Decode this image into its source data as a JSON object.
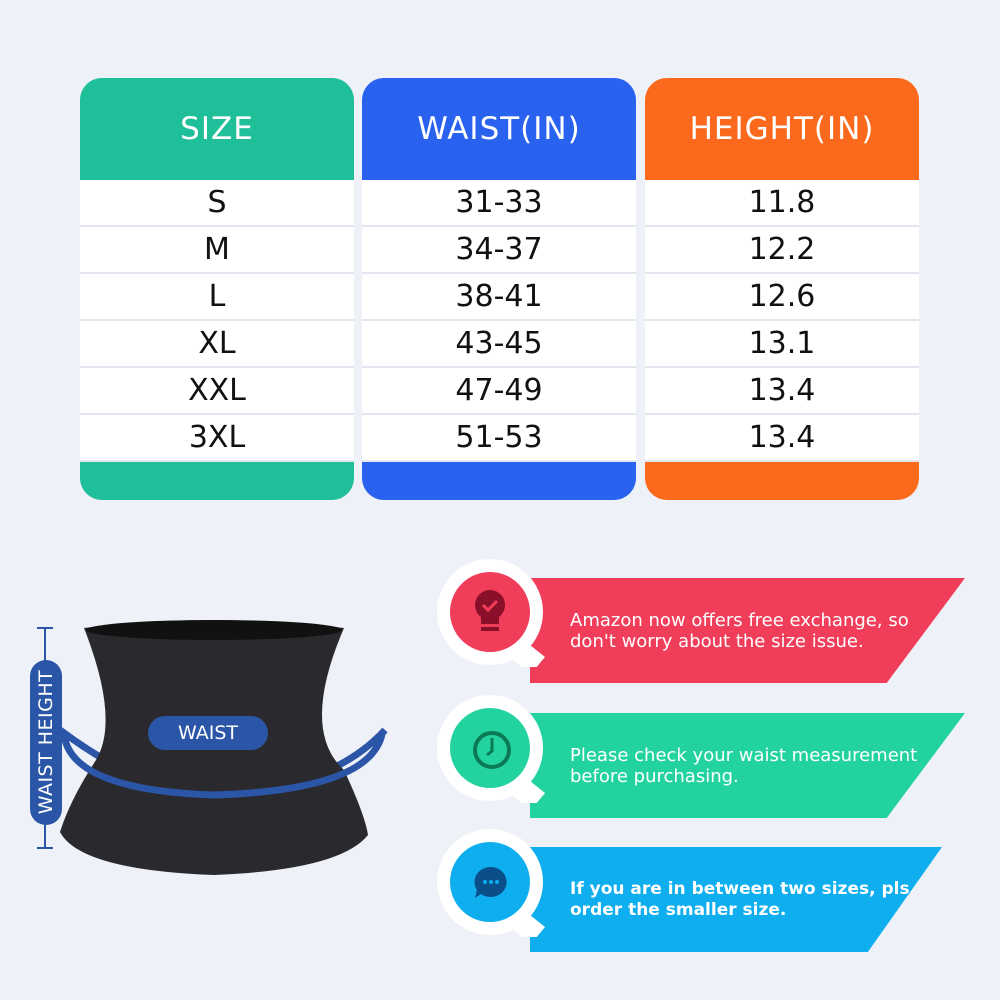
{
  "size_table": {
    "columns": [
      {
        "header": "SIZE",
        "color": "#1ebf99",
        "values": [
          "S",
          "M",
          "L",
          "XL",
          "XXL",
          "3XL"
        ]
      },
      {
        "header": "WAIST(IN)",
        "color": "#2a62f0",
        "values": [
          "31-33",
          "34-37",
          "38-41",
          "43-45",
          "47-49",
          "51-53"
        ]
      },
      {
        "header": "HEIGHT(IN)",
        "color": "#fb6a1c",
        "values": [
          "11.8",
          "12.2",
          "12.6",
          "13.1",
          "13.4",
          "13.4"
        ]
      }
    ]
  },
  "product": {
    "waist_height_label": "WAIST HEIGHT",
    "waist_label": "WAIST",
    "accent": "#2b56a8"
  },
  "tips": [
    {
      "icon": "lightbulb-check-icon",
      "color": "#f03d5a",
      "text": "Amazon now offers free exchange, so don't worry about the size issue."
    },
    {
      "icon": "clock-icon",
      "color": "#22d3a0",
      "text": "Please check your waist measurement before purchasing."
    },
    {
      "icon": "chat-bubble-icon",
      "color": "#0eaeef",
      "text": "If you are in between two sizes, pls order the smaller size."
    }
  ]
}
